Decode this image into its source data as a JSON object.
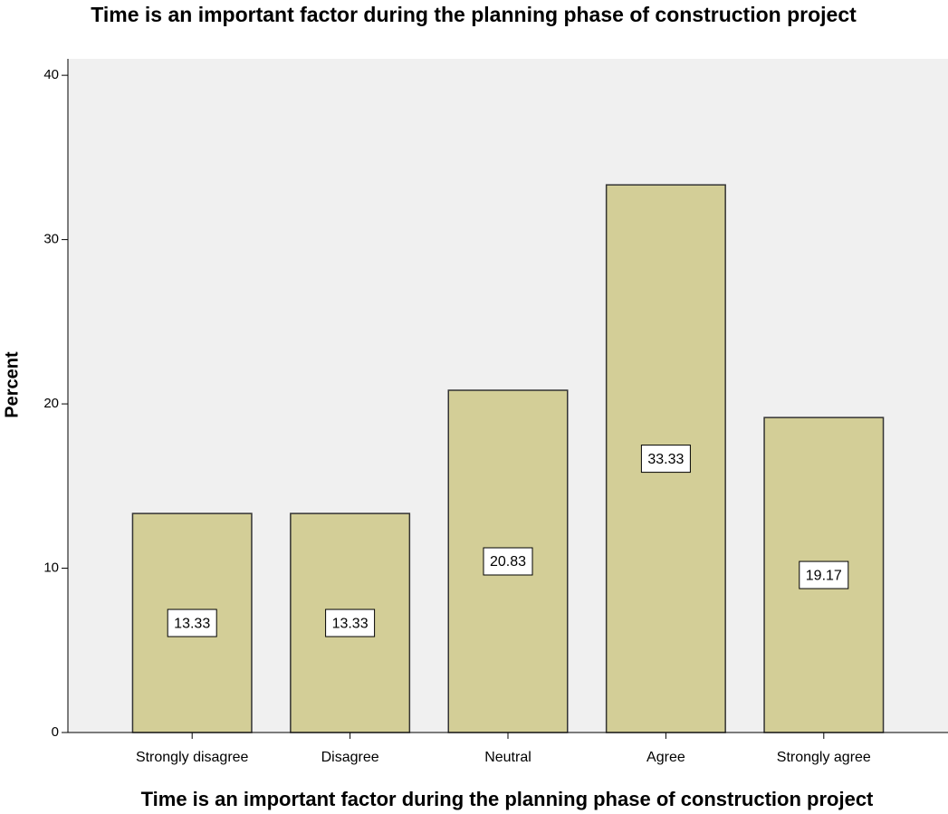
{
  "chart_data": {
    "type": "bar",
    "title": "Time is an important factor during the planning phase of construction project",
    "x_label": "Time is an important factor during the planning phase of construction project",
    "y_label": "Percent",
    "categories": [
      "Strongly disagree",
      "Disagree",
      "Neutral",
      "Agree",
      "Strongly agree"
    ],
    "values": [
      13.33,
      13.33,
      20.83,
      33.33,
      19.17
    ],
    "color": "#d3ce97",
    "ylim": [
      0,
      41
    ],
    "yticks": [
      0,
      10,
      20,
      30,
      40
    ],
    "grid": false
  }
}
